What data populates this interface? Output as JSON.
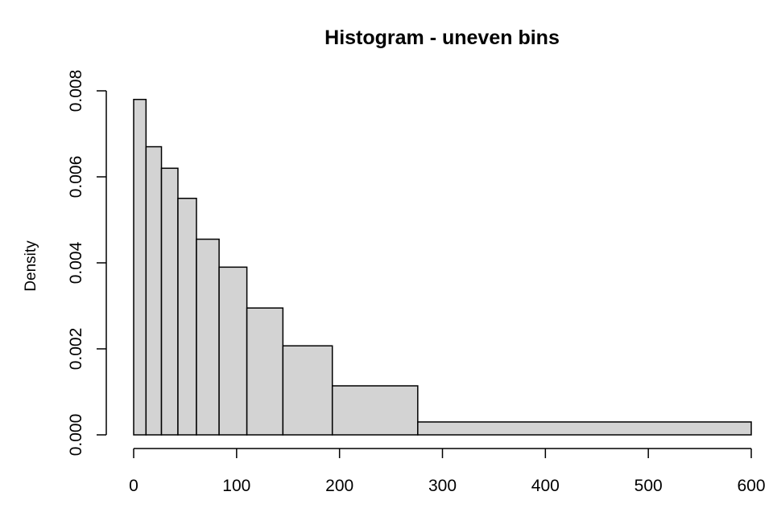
{
  "chart_data": {
    "type": "bar",
    "title": "Histogram - uneven bins",
    "xlabel": "",
    "ylabel": "Density",
    "bins": [
      {
        "start": 0,
        "end": 12,
        "density": 0.0078
      },
      {
        "start": 12,
        "end": 27,
        "density": 0.0067
      },
      {
        "start": 27,
        "end": 43,
        "density": 0.0062
      },
      {
        "start": 43,
        "end": 61,
        "density": 0.0055
      },
      {
        "start": 61,
        "end": 83,
        "density": 0.00455
      },
      {
        "start": 83,
        "end": 110,
        "density": 0.0039
      },
      {
        "start": 110,
        "end": 145,
        "density": 0.00295
      },
      {
        "start": 145,
        "end": 193,
        "density": 0.00207
      },
      {
        "start": 193,
        "end": 276,
        "density": 0.00114
      },
      {
        "start": 276,
        "end": 600,
        "density": 0.0003
      }
    ],
    "xlim": [
      0,
      600
    ],
    "ylim": [
      0,
      0.008
    ],
    "x_ticks": [
      {
        "value": 0,
        "label": "0"
      },
      {
        "value": 100,
        "label": "100"
      },
      {
        "value": 200,
        "label": "200"
      },
      {
        "value": 300,
        "label": "300"
      },
      {
        "value": 400,
        "label": "400"
      },
      {
        "value": 500,
        "label": "500"
      },
      {
        "value": 600,
        "label": "600"
      }
    ],
    "y_ticks": [
      {
        "value": 0,
        "label": "0.000"
      },
      {
        "value": 0.002,
        "label": "0.002"
      },
      {
        "value": 0.004,
        "label": "0.004"
      },
      {
        "value": 0.006,
        "label": "0.006"
      },
      {
        "value": 0.008,
        "label": "0.008"
      }
    ],
    "grid": false,
    "colors": {
      "bar_fill": "#d3d3d3",
      "bar_stroke": "#000000",
      "axis": "#000000"
    }
  }
}
